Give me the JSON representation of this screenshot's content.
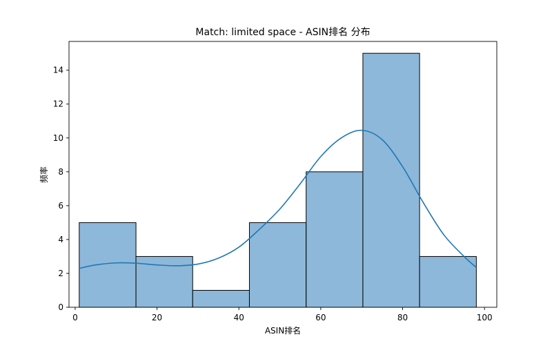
{
  "chart_data": {
    "type": "bar",
    "title": "Match: limited space - ASIN排名 分布",
    "xlabel": "ASIN排名",
    "ylabel": "频率",
    "bins": [
      {
        "x0": 1,
        "x1": 14.86,
        "count": 5
      },
      {
        "x0": 14.86,
        "x1": 28.71,
        "count": 3
      },
      {
        "x0": 28.71,
        "x1": 42.57,
        "count": 1
      },
      {
        "x0": 42.57,
        "x1": 56.43,
        "count": 5
      },
      {
        "x0": 56.43,
        "x1": 70.29,
        "count": 8
      },
      {
        "x0": 70.29,
        "x1": 84.14,
        "count": 15
      },
      {
        "x0": 84.14,
        "x1": 98,
        "count": 3
      }
    ],
    "kde": [
      [
        1,
        2.3
      ],
      [
        5,
        2.5
      ],
      [
        10,
        2.62
      ],
      [
        15,
        2.6
      ],
      [
        20,
        2.5
      ],
      [
        25,
        2.45
      ],
      [
        30,
        2.55
      ],
      [
        35,
        2.9
      ],
      [
        40,
        3.55
      ],
      [
        45,
        4.6
      ],
      [
        50,
        5.8
      ],
      [
        55,
        7.3
      ],
      [
        60,
        8.9
      ],
      [
        65,
        10.0
      ],
      [
        70,
        10.45
      ],
      [
        75,
        9.9
      ],
      [
        80,
        8.3
      ],
      [
        85,
        6.2
      ],
      [
        90,
        4.3
      ],
      [
        95,
        3.0
      ],
      [
        98,
        2.35
      ]
    ],
    "xlim": [
      -1.5,
      103
    ],
    "ylim": [
      0,
      15.7
    ],
    "xticks": [
      0,
      20,
      40,
      60,
      80,
      100
    ],
    "yticks": [
      0,
      2,
      4,
      6,
      8,
      10,
      12,
      14
    ],
    "grid": false,
    "bar_color": "#8db8da",
    "edge_color": "#000000",
    "line_color": "#1f77b4"
  }
}
